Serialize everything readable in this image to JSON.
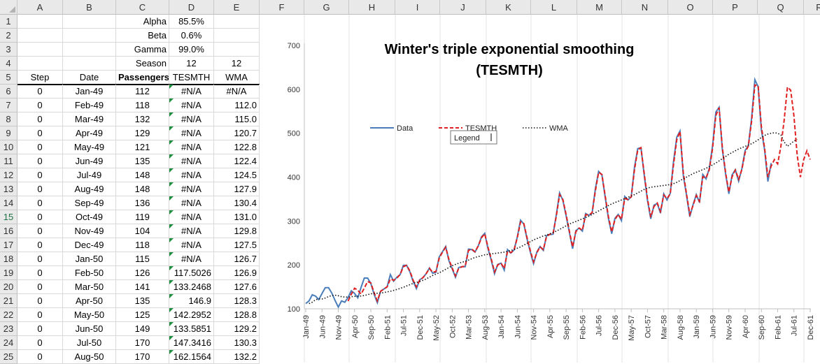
{
  "columns": [
    "A",
    "B",
    "C",
    "D",
    "E",
    "F",
    "G",
    "H",
    "I",
    "J",
    "K",
    "L",
    "M",
    "N",
    "O",
    "P",
    "Q",
    "R"
  ],
  "rows": [
    "1",
    "2",
    "3",
    "4",
    "5",
    "6",
    "7",
    "8",
    "9",
    "10",
    "11",
    "12",
    "13",
    "14",
    "15",
    "16",
    "17",
    "18",
    "19",
    "20",
    "21",
    "22",
    "23",
    "24",
    "25"
  ],
  "params": [
    {
      "label": "Alpha",
      "value": "85.5%"
    },
    {
      "label": "Beta",
      "value": "0.6%"
    },
    {
      "label": "Gamma",
      "value": "99.0%"
    },
    {
      "label": "Season",
      "value": "12",
      "value2": "12"
    }
  ],
  "table_headers": [
    "Step",
    "Date",
    "Passengers",
    "TESMTH",
    "WMA"
  ],
  "table_rows": [
    [
      "0",
      "Jan-49",
      "112",
      "#N/A",
      "#N/A"
    ],
    [
      "0",
      "Feb-49",
      "118",
      "#N/A",
      "112.0"
    ],
    [
      "0",
      "Mar-49",
      "132",
      "#N/A",
      "115.0"
    ],
    [
      "0",
      "Apr-49",
      "129",
      "#N/A",
      "120.7"
    ],
    [
      "0",
      "May-49",
      "121",
      "#N/A",
      "122.8"
    ],
    [
      "0",
      "Jun-49",
      "135",
      "#N/A",
      "122.4"
    ],
    [
      "0",
      "Jul-49",
      "148",
      "#N/A",
      "124.5"
    ],
    [
      "0",
      "Aug-49",
      "148",
      "#N/A",
      "127.9"
    ],
    [
      "0",
      "Sep-49",
      "136",
      "#N/A",
      "130.4"
    ],
    [
      "0",
      "Oct-49",
      "119",
      "#N/A",
      "131.0"
    ],
    [
      "0",
      "Nov-49",
      "104",
      "#N/A",
      "129.8"
    ],
    [
      "0",
      "Dec-49",
      "118",
      "#N/A",
      "127.5"
    ],
    [
      "0",
      "Jan-50",
      "115",
      "#N/A",
      "126.7"
    ],
    [
      "0",
      "Feb-50",
      "126",
      "117.5026",
      "126.9"
    ],
    [
      "0",
      "Mar-50",
      "141",
      "133.2468",
      "127.6"
    ],
    [
      "0",
      "Apr-50",
      "135",
      "146.9",
      "128.3"
    ],
    [
      "0",
      "May-50",
      "125",
      "142.2952",
      "128.8"
    ],
    [
      "0",
      "Jun-50",
      "149",
      "133.5851",
      "129.2"
    ],
    [
      "0",
      "Jul-50",
      "170",
      "147.3416",
      "130.3"
    ],
    [
      "0",
      "Aug-50",
      "170",
      "162.1564",
      "132.2"
    ]
  ],
  "legend_tooltip": "Legend",
  "chart_data": {
    "type": "line",
    "title": "Winter's triple exponential smoothing (TESMTH)",
    "title_lines": [
      "Winter's triple exponential smoothing",
      "(TESMTH)"
    ],
    "ylim": [
      100,
      700
    ],
    "yticks": [
      100,
      200,
      300,
      400,
      500,
      600,
      700
    ],
    "grid": "vertical",
    "legend_placement": "upper-left",
    "xtick_labels": [
      "Jan-49",
      "Jun-49",
      "Nov-49",
      "Apr-50",
      "Sep-50",
      "Feb-51",
      "Jul-51",
      "Dec-51",
      "May-52",
      "Oct-52",
      "Mar-53",
      "Aug-53",
      "Jan-54",
      "Jun-54",
      "Nov-54",
      "Apr-55",
      "Sep-55",
      "Feb-56",
      "Jul-56",
      "Dec-56",
      "May-57",
      "Oct-57",
      "Mar-58",
      "Aug-58",
      "Jan-59",
      "Jun-59",
      "Nov-59",
      "Apr-60",
      "Sep-60",
      "Feb-61",
      "Jul-61",
      "Dec-61"
    ],
    "xtick_step": 5,
    "series": [
      {
        "name": "Data",
        "color": "#4a7ebb",
        "style": "solid",
        "start": 0,
        "values": [
          112,
          118,
          132,
          129,
          121,
          135,
          148,
          148,
          136,
          119,
          104,
          118,
          115,
          126,
          141,
          135,
          125,
          149,
          170,
          170,
          158,
          133,
          114,
          140,
          145,
          150,
          178,
          163,
          172,
          178,
          199,
          199,
          184,
          162,
          146,
          166,
          171,
          180,
          193,
          181,
          183,
          218,
          230,
          242,
          209,
          191,
          172,
          194,
          196,
          196,
          236,
          235,
          229,
          243,
          264,
          272,
          237,
          211,
          180,
          201,
          204,
          188,
          235,
          227,
          234,
          264,
          302,
          293,
          259,
          229,
          203,
          229,
          242,
          233,
          267,
          269,
          270,
          315,
          364,
          347,
          312,
          274,
          237,
          278,
          284,
          277,
          317,
          313,
          318,
          374,
          413,
          405,
          355,
          306,
          271,
          306,
          315,
          301,
          356,
          348,
          355,
          422,
          465,
          467,
          404,
          347,
          305,
          336,
          340,
          318,
          362,
          348,
          363,
          435,
          491,
          505,
          404,
          359,
          310,
          337,
          360,
          342,
          406,
          396,
          420,
          472,
          548,
          559,
          463,
          407,
          362,
          405,
          417,
          391,
          419,
          461,
          472,
          535,
          622,
          606,
          508,
          461,
          390,
          432
        ]
      },
      {
        "name": "TESMTH",
        "color": "#e02020",
        "style": "dashed",
        "start": 13,
        "values": [
          117.5,
          133.2,
          146.9,
          142.3,
          133.6,
          147.3,
          162.2,
          159,
          137,
          118,
          140,
          145,
          150,
          168,
          165,
          170,
          178,
          196,
          199,
          186,
          165,
          150,
          165,
          171,
          180,
          192,
          183,
          185,
          215,
          229,
          240,
          212,
          193,
          175,
          192,
          196,
          197,
          233,
          236,
          230,
          243,
          262,
          271,
          240,
          214,
          184,
          200,
          204,
          192,
          231,
          228,
          234,
          262,
          298,
          294,
          262,
          232,
          207,
          228,
          241,
          235,
          265,
          270,
          271,
          312,
          360,
          349,
          315,
          277,
          241,
          276,
          284,
          279,
          314,
          314,
          319,
          369,
          411,
          406,
          358,
          310,
          275,
          303,
          315,
          304,
          351,
          349,
          355,
          416,
          462,
          467,
          408,
          351,
          309,
          333,
          341,
          322,
          359,
          351,
          362,
          428,
          485,
          504,
          410,
          362,
          315,
          335,
          358,
          345,
          401,
          398,
          417,
          466,
          540,
          558,
          468,
          410,
          366,
          401,
          416,
          395,
          417,
          456,
          471,
          528,
          610,
          608,
          515,
          465,
          400,
          425,
          440,
          430,
          470,
          530,
          605,
          598,
          540,
          450,
          400,
          440,
          460,
          440
        ]
      },
      {
        "name": "WMA",
        "color": "#111111",
        "style": "dotted",
        "start": 1,
        "values": [
          112,
          115,
          120.7,
          122.8,
          122.4,
          124.5,
          127.9,
          130.4,
          131,
          129.8,
          127.5,
          126.7,
          126.9,
          127.6,
          128.3,
          128.8,
          129.2,
          130.3,
          132.2,
          134,
          135,
          135.5,
          136,
          137,
          138.5,
          140,
          142,
          144,
          146.5,
          149,
          152,
          155,
          158,
          160,
          162,
          165,
          168,
          172,
          176,
          179,
          182,
          186,
          190,
          194,
          198,
          201,
          204,
          206,
          208,
          211,
          214,
          217,
          219,
          221,
          223,
          224,
          225,
          226,
          227,
          228,
          229,
          231,
          233,
          235,
          238,
          241,
          245,
          249,
          253,
          257,
          260,
          263,
          266,
          268,
          271,
          274,
          277,
          281,
          285,
          289,
          293,
          296,
          299,
          302,
          305,
          308,
          311,
          315,
          319,
          323,
          327,
          331,
          335,
          339,
          342,
          345,
          348,
          351,
          354,
          357,
          360,
          364,
          368,
          372,
          375,
          377,
          378,
          379,
          380,
          381,
          382,
          383,
          385,
          388,
          392,
          396,
          400,
          404,
          408,
          411,
          414,
          417,
          420,
          424,
          428,
          432,
          437,
          442,
          447,
          452,
          456,
          460,
          464,
          467,
          470,
          473,
          476,
          480,
          485,
          490,
          495,
          498,
          500,
          501,
          500,
          496,
          480,
          470,
          476,
          482,
          486
        ]
      }
    ]
  }
}
